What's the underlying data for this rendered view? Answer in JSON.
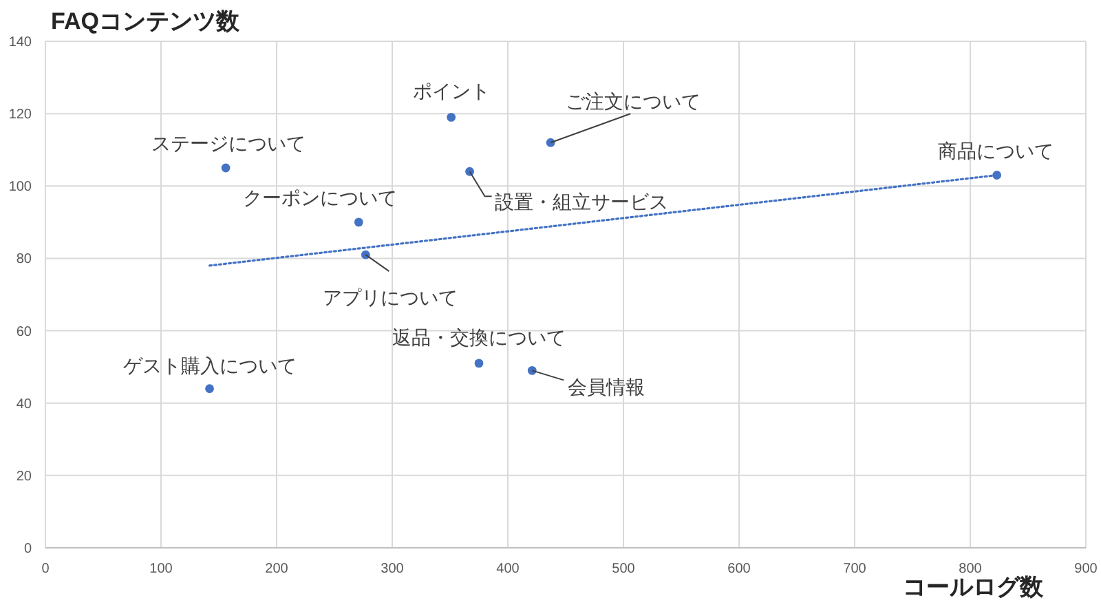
{
  "chart_data": {
    "type": "scatter",
    "title": "FAQコンテンツ数",
    "xlabel": "コールログ数",
    "xlim": [
      0,
      900
    ],
    "ylim": [
      0,
      140
    ],
    "xticks": [
      0,
      100,
      200,
      300,
      400,
      500,
      600,
      700,
      800,
      900
    ],
    "yticks": [
      0,
      20,
      40,
      60,
      80,
      100,
      120,
      140
    ],
    "grid": true,
    "series": [
      {
        "marker": "circle",
        "color": "#4472c4",
        "x": [
          156,
          351,
          437,
          271,
          367,
          277,
          375,
          421,
          142,
          823
        ],
        "values": [
          105,
          119,
          112,
          90,
          104,
          81,
          51,
          49,
          44,
          103
        ]
      },
      {
        "type": "line",
        "color": "#4472c4",
        "line_style": "dotted",
        "x": [
          142,
          823
        ],
        "values": [
          78,
          103
        ]
      }
    ],
    "annotations": [
      {
        "text": "ステージについて",
        "x": 156,
        "y": 105
      },
      {
        "text": "ポイント",
        "x": 351,
        "y": 119
      },
      {
        "text": "ご注文について",
        "x": 437,
        "y": 112
      },
      {
        "text": "クーポンについて",
        "x": 271,
        "y": 90
      },
      {
        "text": "設置・組立サービス",
        "x": 367,
        "y": 104
      },
      {
        "text": "アプリについて",
        "x": 277,
        "y": 81
      },
      {
        "text": "返品・交換について",
        "x": 375,
        "y": 51
      },
      {
        "text": "会員情報",
        "x": 421,
        "y": 49
      },
      {
        "text": "ゲスト購入について",
        "x": 142,
        "y": 44
      },
      {
        "text": "商品について",
        "x": 823,
        "y": 103
      }
    ]
  }
}
